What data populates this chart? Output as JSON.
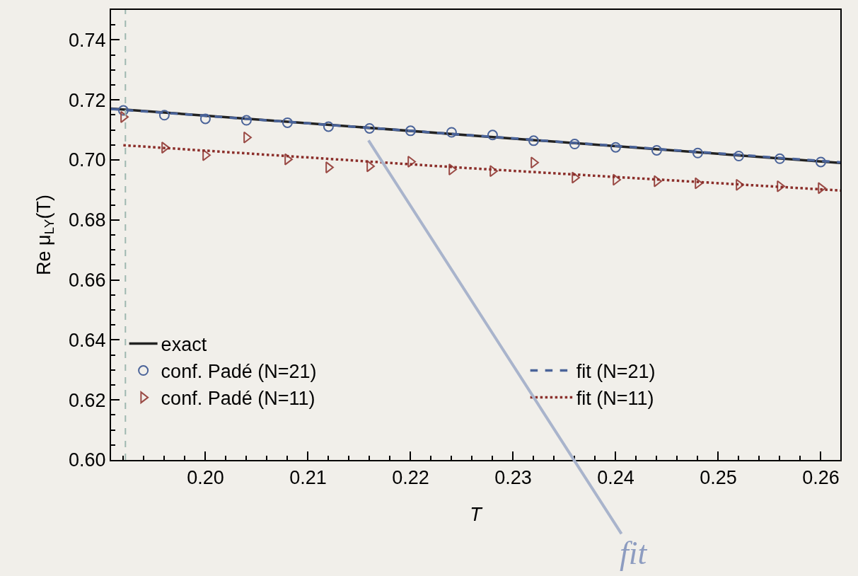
{
  "chart_data": {
    "type": "line",
    "xlabel": "T",
    "ylabel": "Re μ$_{LY}$(T)",
    "xlim": [
      0.1908,
      0.2619
    ],
    "ylim": [
      0.6,
      0.75
    ],
    "xticks": [
      {
        "value": 0.2,
        "label": "0.20"
      },
      {
        "value": 0.21,
        "label": "0.21"
      },
      {
        "value": 0.22,
        "label": "0.22"
      },
      {
        "value": 0.23,
        "label": "0.23"
      },
      {
        "value": 0.24,
        "label": "0.24"
      },
      {
        "value": 0.25,
        "label": "0.25"
      },
      {
        "value": 0.26,
        "label": "0.26"
      }
    ],
    "yticks": [
      {
        "value": 0.6,
        "label": "0.60"
      },
      {
        "value": 0.62,
        "label": "0.62"
      },
      {
        "value": 0.64,
        "label": "0.64"
      },
      {
        "value": 0.66,
        "label": "0.66"
      },
      {
        "value": 0.68,
        "label": "0.68"
      },
      {
        "value": 0.7,
        "label": "0.70"
      },
      {
        "value": 0.72,
        "label": "0.72"
      },
      {
        "value": 0.74,
        "label": "0.74"
      }
    ],
    "grid": false,
    "legend": "bottom left",
    "series": [
      {
        "name": "exact",
        "color": "#222222",
        "line_style": "solid",
        "marker": "none",
        "x": [
          0.1908,
          0.2619
        ],
        "values": [
          0.7171,
          0.699
        ]
      },
      {
        "name": "conf. Padé (N=21)",
        "type": "scatter",
        "color": "#4a6399",
        "marker": "circle",
        "x": [
          0.192,
          0.196,
          0.2,
          0.204,
          0.208,
          0.212,
          0.216,
          0.22,
          0.224,
          0.228,
          0.232,
          0.236,
          0.24,
          0.244,
          0.248,
          0.252,
          0.256,
          0.26
        ],
        "values": [
          0.7165,
          0.7149,
          0.7137,
          0.7132,
          0.7124,
          0.7111,
          0.7105,
          0.7097,
          0.7092,
          0.7083,
          0.7064,
          0.7053,
          0.7042,
          0.7032,
          0.7023,
          0.7013,
          0.7004,
          0.6993
        ]
      },
      {
        "name": "conf. Padé (N=11)",
        "type": "scatter",
        "color": "#9a4a45",
        "marker": "triangle",
        "x": [
          0.192,
          0.196,
          0.2,
          0.204,
          0.208,
          0.212,
          0.216,
          0.22,
          0.224,
          0.228,
          0.232,
          0.236,
          0.24,
          0.244,
          0.248,
          0.252,
          0.256,
          0.26
        ],
        "values": [
          0.7143,
          0.7041,
          0.7016,
          0.7075,
          0.7002,
          0.6975,
          0.6979,
          0.6994,
          0.6968,
          0.6963,
          0.6991,
          0.6941,
          0.6934,
          0.6929,
          0.6922,
          0.6917,
          0.6912,
          0.6906
        ]
      },
      {
        "name": "fit (N=21)",
        "color": "#4a6399",
        "line_style": "dashed",
        "marker": "none",
        "x": [
          0.1908,
          0.2619
        ],
        "values": [
          0.717,
          0.6992
        ]
      },
      {
        "name": "fit (N=11)",
        "color": "#8b2e2a",
        "line_style": "dotted",
        "marker": "none",
        "x": [
          0.192,
          0.2255,
          0.2619
        ],
        "values": [
          0.7049,
          0.6973,
          0.6898
        ]
      }
    ],
    "ref_lines": [
      {
        "axis": "x",
        "value": 0.1922,
        "color": "#9fb8b0",
        "line_style": "dashed"
      }
    ],
    "annotations": [
      "fit"
    ]
  }
}
